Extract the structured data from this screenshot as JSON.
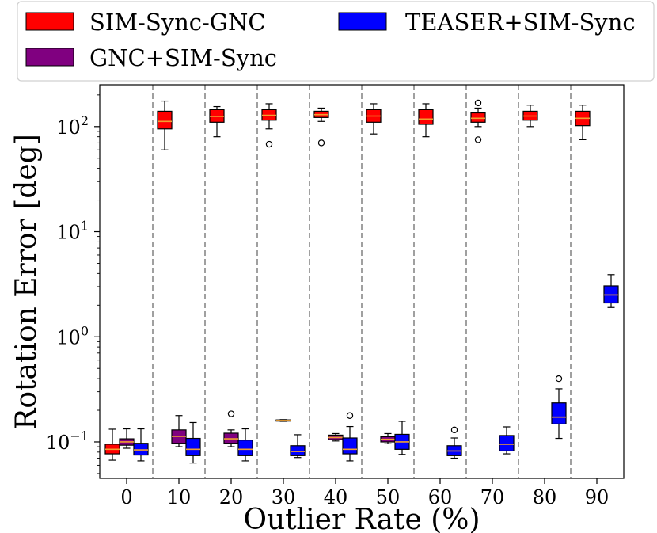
{
  "chart_data": {
    "type": "boxplot",
    "xlabel": "Outlier Rate (%)",
    "ylabel": "Rotation Error [deg]",
    "yscale": "log",
    "ylim": [
      0.045,
      250
    ],
    "yticks": [
      {
        "value": 0.1,
        "base": "10",
        "exp": "−1"
      },
      {
        "value": 1,
        "base": "10",
        "exp": "0"
      },
      {
        "value": 10,
        "base": "10",
        "exp": "1"
      },
      {
        "value": 100,
        "base": "10",
        "exp": "2"
      }
    ],
    "categories": [
      "0",
      "10",
      "20",
      "30",
      "40",
      "50",
      "60",
      "70",
      "80",
      "90"
    ],
    "legend": {
      "position": "top",
      "entries": [
        {
          "label": "SIM-Sync-GNC",
          "color": "#ff0000"
        },
        {
          "label": "TEASER+SIM-Sync",
          "color": "#0000ff"
        },
        {
          "label": "GNC+SIM-Sync",
          "color": "#800080"
        }
      ]
    },
    "series": [
      {
        "name": "SIM-Sync-GNC",
        "color": "#ff0000",
        "boxes": [
          {
            "cat": 0,
            "whislo": 0.067,
            "q1": 0.077,
            "med": 0.085,
            "q3": 0.095,
            "whishi": 0.132,
            "fliers": []
          },
          {
            "cat": 1,
            "whislo": 60,
            "q1": 95,
            "med": 112,
            "q3": 140,
            "whishi": 175,
            "fliers": []
          },
          {
            "cat": 2,
            "whislo": 80,
            "q1": 110,
            "med": 125,
            "q3": 145,
            "whishi": 155,
            "fliers": []
          },
          {
            "cat": 3,
            "whislo": 95,
            "q1": 115,
            "med": 128,
            "q3": 145,
            "whishi": 165,
            "fliers": [
              68
            ]
          },
          {
            "cat": 4,
            "whislo": 112,
            "q1": 122,
            "med": 130,
            "q3": 140,
            "whishi": 150,
            "fliers": [
              70
            ]
          },
          {
            "cat": 5,
            "whislo": 85,
            "q1": 110,
            "med": 126,
            "q3": 145,
            "whishi": 165,
            "fliers": []
          },
          {
            "cat": 6,
            "whislo": 80,
            "q1": 105,
            "med": 118,
            "q3": 145,
            "whishi": 165,
            "fliers": []
          },
          {
            "cat": 7,
            "whislo": 100,
            "q1": 110,
            "med": 120,
            "q3": 135,
            "whishi": 150,
            "fliers": [
              75,
              168
            ]
          },
          {
            "cat": 8,
            "whislo": 100,
            "q1": 115,
            "med": 126,
            "q3": 140,
            "whishi": 160,
            "fliers": []
          },
          {
            "cat": 9,
            "whislo": 75,
            "q1": 102,
            "med": 120,
            "q3": 140,
            "whishi": 160,
            "fliers": []
          }
        ]
      },
      {
        "name": "GNC+SIM-Sync",
        "color": "#800080",
        "boxes": [
          {
            "cat": 0,
            "whislo": 0.087,
            "q1": 0.093,
            "med": 0.1,
            "q3": 0.107,
            "whishi": 0.133,
            "fliers": []
          },
          {
            "cat": 1,
            "whislo": 0.09,
            "q1": 0.097,
            "med": 0.113,
            "q3": 0.13,
            "whishi": 0.178,
            "fliers": []
          },
          {
            "cat": 2,
            "whislo": 0.09,
            "q1": 0.097,
            "med": 0.107,
            "q3": 0.121,
            "whishi": 0.13,
            "fliers": [
              0.185
            ]
          },
          {
            "cat": 3,
            "whislo": 0.157,
            "q1": 0.158,
            "med": 0.16,
            "q3": 0.162,
            "whishi": 0.163,
            "fliers": []
          },
          {
            "cat": 4,
            "whislo": 0.102,
            "q1": 0.105,
            "med": 0.11,
            "q3": 0.116,
            "whishi": 0.12,
            "fliers": []
          },
          {
            "cat": 5,
            "whislo": 0.096,
            "q1": 0.1,
            "med": 0.106,
            "q3": 0.112,
            "whishi": 0.12,
            "fliers": []
          }
        ]
      },
      {
        "name": "TEASER+SIM-Sync",
        "color": "#0000ff",
        "boxes": [
          {
            "cat": 0,
            "whislo": 0.066,
            "q1": 0.075,
            "med": 0.084,
            "q3": 0.097,
            "whishi": 0.133,
            "fliers": []
          },
          {
            "cat": 1,
            "whislo": 0.063,
            "q1": 0.074,
            "med": 0.085,
            "q3": 0.108,
            "whishi": 0.153,
            "fliers": []
          },
          {
            "cat": 2,
            "whislo": 0.066,
            "q1": 0.074,
            "med": 0.085,
            "q3": 0.104,
            "whishi": 0.133,
            "fliers": []
          },
          {
            "cat": 3,
            "whislo": 0.071,
            "q1": 0.074,
            "med": 0.081,
            "q3": 0.092,
            "whishi": 0.117,
            "fliers": []
          },
          {
            "cat": 4,
            "whislo": 0.066,
            "q1": 0.077,
            "med": 0.085,
            "q3": 0.109,
            "whishi": 0.14,
            "fliers": [
              0.178
            ]
          },
          {
            "cat": 5,
            "whislo": 0.076,
            "q1": 0.085,
            "med": 0.1,
            "q3": 0.118,
            "whishi": 0.157,
            "fliers": []
          },
          {
            "cat": 6,
            "whislo": 0.07,
            "q1": 0.074,
            "med": 0.082,
            "q3": 0.092,
            "whishi": 0.109,
            "fliers": [
              0.13
            ]
          },
          {
            "cat": 7,
            "whislo": 0.077,
            "q1": 0.082,
            "med": 0.095,
            "q3": 0.115,
            "whishi": 0.139,
            "fliers": []
          },
          {
            "cat": 8,
            "whislo": 0.108,
            "q1": 0.148,
            "med": 0.172,
            "q3": 0.235,
            "whishi": 0.32,
            "fliers": [
              0.4
            ]
          },
          {
            "cat": 9,
            "whislo": 1.9,
            "q1": 2.1,
            "med": 2.5,
            "q3": 3.05,
            "whishi": 3.9,
            "fliers": []
          }
        ]
      }
    ]
  }
}
